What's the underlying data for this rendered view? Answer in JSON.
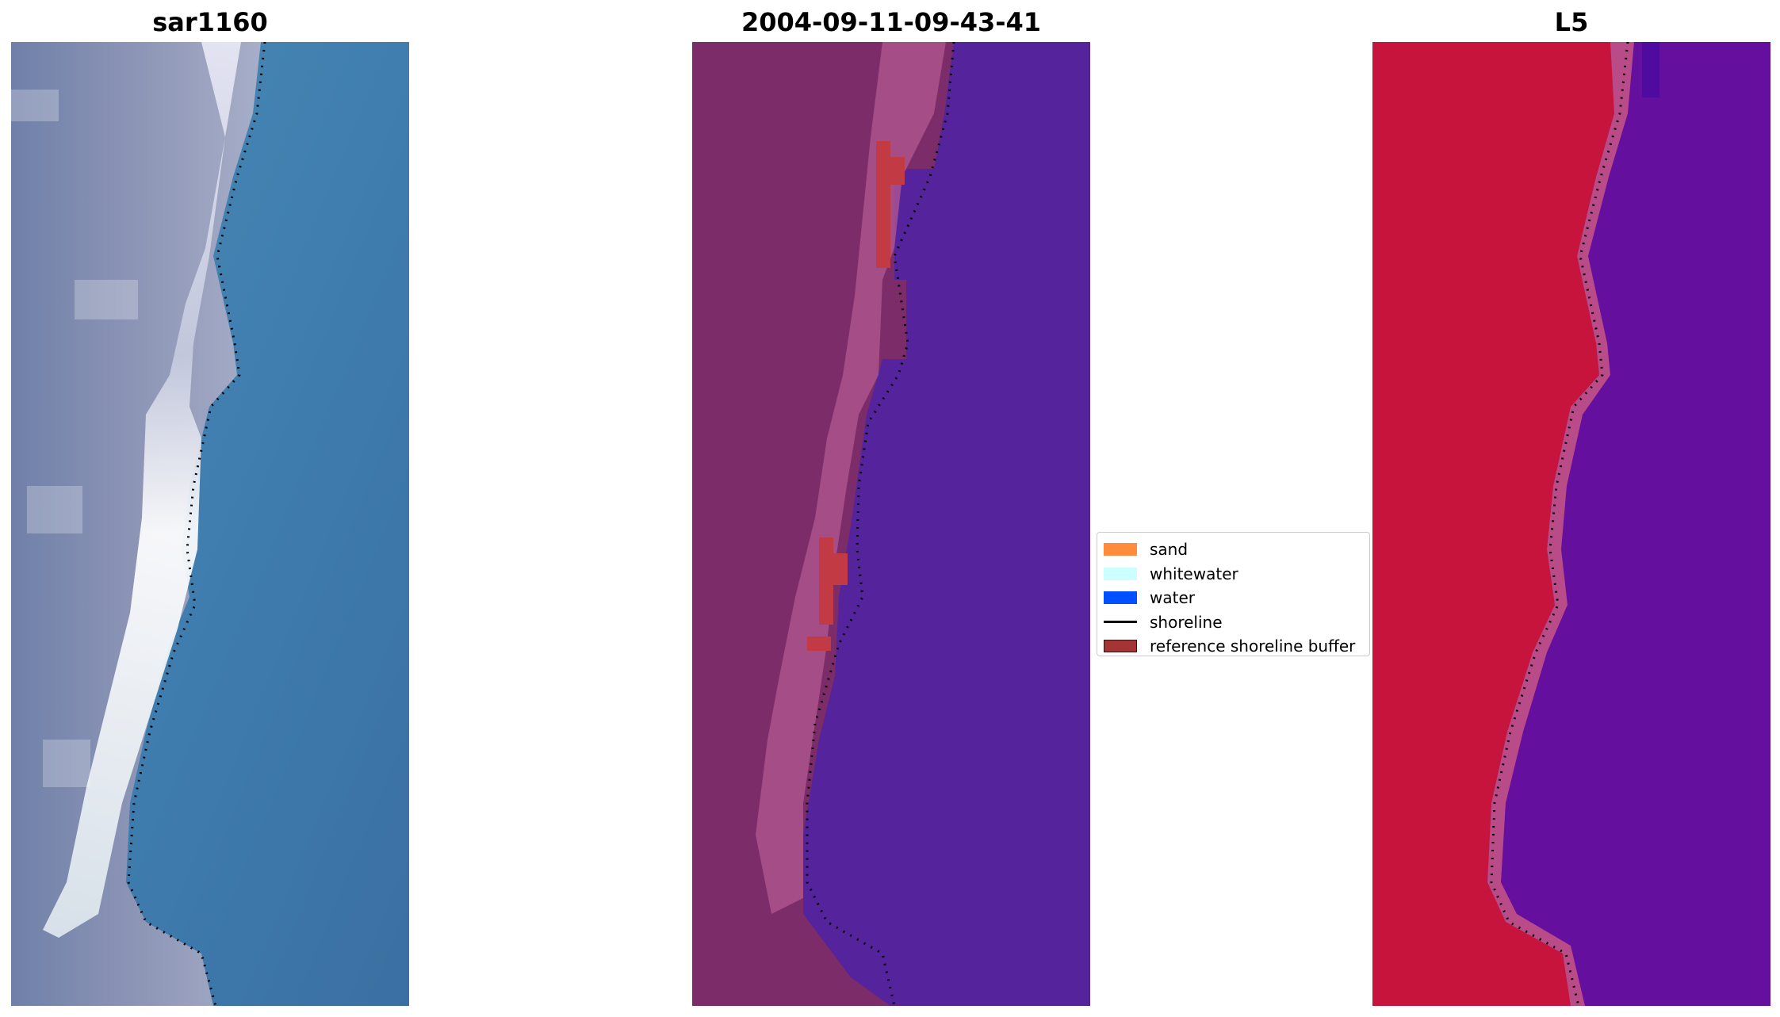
{
  "panels": [
    {
      "title": "sar1160",
      "image": "rgb-satellite-image"
    },
    {
      "title": "2004-09-11-09-43-41",
      "image": "classified-image"
    },
    {
      "title": "L5",
      "image": "mndwi-image"
    }
  ],
  "legend": {
    "items": [
      {
        "label": "sand",
        "type": "patch",
        "color": "#ff8c3c"
      },
      {
        "label": "whitewater",
        "type": "patch",
        "color": "#ccffff"
      },
      {
        "label": "water",
        "type": "patch",
        "color": "#0050ff"
      },
      {
        "label": "shoreline",
        "type": "line",
        "color": "#000000"
      },
      {
        "label": "reference shoreline buffer",
        "type": "patch",
        "color": "#a33535"
      }
    ]
  },
  "colors": {
    "sand_bg": "#9aa3bd",
    "whitewater": "#f4f4ff",
    "sea_rgb": "#3f7fae",
    "classified_land": "#7c2c68",
    "classified_water": "#55249c",
    "classified_buffer": "#c23b44",
    "mndwi_land": "#c6143c",
    "mndwi_water": "#650f9e"
  }
}
